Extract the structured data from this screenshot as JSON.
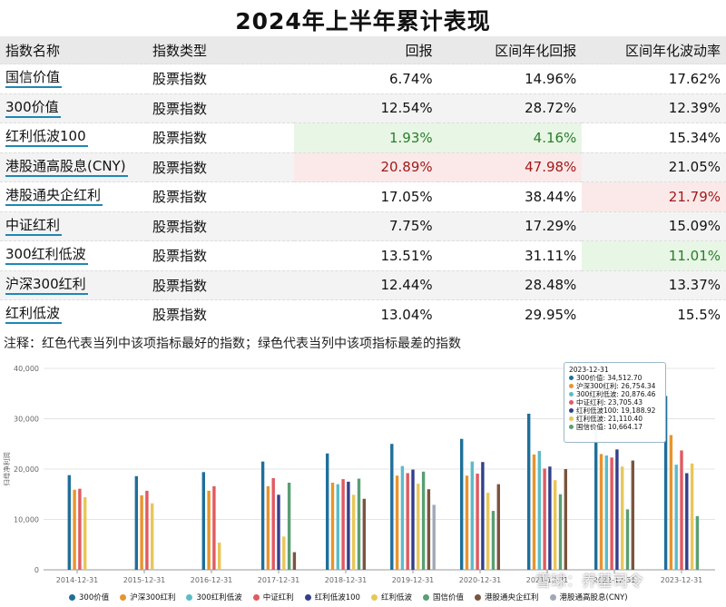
{
  "page": {
    "title": "2024年上半年累计表现",
    "note": "注释：红色代表当列中该项指标最好的指数；绿色代表当列中该项指标最差的指数",
    "watermark": "雪球：养基司令"
  },
  "table": {
    "headers": [
      "指数名称",
      "指数类型",
      "回报",
      "区间年化回报",
      "区间年化波动率"
    ],
    "rows": [
      {
        "name": "国信价值",
        "type": "股票指数",
        "ret": "6.74%",
        "ann_ret": "14.96%",
        "ann_vol": "17.62%"
      },
      {
        "name": "300价值",
        "type": "股票指数",
        "ret": "12.54%",
        "ann_ret": "28.72%",
        "ann_vol": "12.39%"
      },
      {
        "name": "红利低波100",
        "type": "股票指数",
        "ret": "1.93%",
        "ann_ret": "4.16%",
        "ann_vol": "15.34%"
      },
      {
        "name": "港股通高股息(CNY)",
        "type": "股票指数",
        "ret": "20.89%",
        "ann_ret": "47.98%",
        "ann_vol": "21.05%"
      },
      {
        "name": "港股通央企红利",
        "type": "股票指数",
        "ret": "17.05%",
        "ann_ret": "38.44%",
        "ann_vol": "21.79%"
      },
      {
        "name": "中证红利",
        "type": "股票指数",
        "ret": "7.75%",
        "ann_ret": "17.29%",
        "ann_vol": "15.09%"
      },
      {
        "name": "300红利低波",
        "type": "股票指数",
        "ret": "13.51%",
        "ann_ret": "31.11%",
        "ann_vol": "11.01%"
      },
      {
        "name": "沪深300红利",
        "type": "股票指数",
        "ret": "12.44%",
        "ann_ret": "28.48%",
        "ann_vol": "13.37%"
      },
      {
        "name": "红利低波",
        "type": "股票指数",
        "ret": "13.04%",
        "ann_ret": "29.95%",
        "ann_vol": "15.5%"
      }
    ],
    "highlights": {
      "best_color": "#fbe9e9",
      "worst_color": "#e8f6e6",
      "best": [
        [
          3,
          "ret"
        ],
        [
          3,
          "ann_ret"
        ],
        [
          4,
          "ann_vol"
        ]
      ],
      "worst": [
        [
          2,
          "ret"
        ],
        [
          2,
          "ann_ret"
        ],
        [
          6,
          "ann_vol"
        ]
      ]
    }
  },
  "tooltip": {
    "date": "2023-12-31",
    "rows": [
      {
        "label": "300价值: 34,512.70",
        "color": "#1f6f9a"
      },
      {
        "label": "沪深300红利: 26,754.34",
        "color": "#e8942e"
      },
      {
        "label": "300红利低波: 20,876.46",
        "color": "#5bbcc8"
      },
      {
        "label": "中证红利: 23,705.43",
        "color": "#e05a62"
      },
      {
        "label": "红利低波100: 19,188.92",
        "color": "#343f8c"
      },
      {
        "label": "红利低波: 21,110.40",
        "color": "#e8c75a"
      },
      {
        "label": "国信价值: 10,664.17",
        "color": "#5a9e74"
      }
    ]
  },
  "chart_data": {
    "type": "bar",
    "ylabel": "归母净利润",
    "ylim": [
      0,
      40000
    ],
    "yticks": [
      "0",
      "10,000",
      "20,000",
      "30,000",
      "40,000"
    ],
    "grid": true,
    "legend_position": "bottom",
    "categories": [
      "2014-12-31",
      "2015-12-31",
      "2016-12-31",
      "2017-12-31",
      "2018-12-31",
      "2019-12-31",
      "2020-12-31",
      "2021-12-31",
      "2022-12-31",
      "2023-12-31"
    ],
    "series": [
      {
        "name": "300价值",
        "color": "#1f6f9a",
        "values": [
          18800,
          18600,
          19400,
          21500,
          23100,
          25000,
          26000,
          31000,
          31000,
          34512.7
        ]
      },
      {
        "name": "沪深300红利",
        "color": "#e8942e",
        "values": [
          15900,
          14800,
          15700,
          16600,
          17300,
          18700,
          18700,
          22900,
          23000,
          26754.34
        ]
      },
      {
        "name": "300红利低波",
        "color": "#5bbcc8",
        "values": [
          null,
          null,
          null,
          null,
          17000,
          20600,
          21500,
          23600,
          22700,
          20876.46
        ]
      },
      {
        "name": "中证红利",
        "color": "#e05a62",
        "values": [
          16100,
          15700,
          16600,
          18200,
          18000,
          19200,
          19100,
          20100,
          22300,
          23705.43
        ]
      },
      {
        "name": "红利低波100",
        "color": "#343f8c",
        "values": [
          null,
          null,
          null,
          14900,
          17500,
          19900,
          21400,
          20500,
          23900,
          19188.92
        ]
      },
      {
        "name": "红利低波",
        "color": "#e8c75a",
        "values": [
          14400,
          13200,
          5400,
          6600,
          14900,
          17100,
          15300,
          17800,
          20500,
          21110.4
        ]
      },
      {
        "name": "国信价值",
        "color": "#5a9e74",
        "values": [
          null,
          null,
          null,
          17300,
          18100,
          19500,
          11700,
          15000,
          12000,
          10664.17
        ]
      },
      {
        "name": "港股通央企红利",
        "color": "#7a5540",
        "values": [
          null,
          null,
          null,
          3500,
          14100,
          16000,
          17000,
          20000,
          21700,
          null
        ]
      },
      {
        "name": "港股通高股息(CNY)",
        "color": "#a0a8b8",
        "values": [
          null,
          null,
          null,
          null,
          null,
          12900,
          null,
          null,
          null,
          null
        ]
      }
    ]
  }
}
